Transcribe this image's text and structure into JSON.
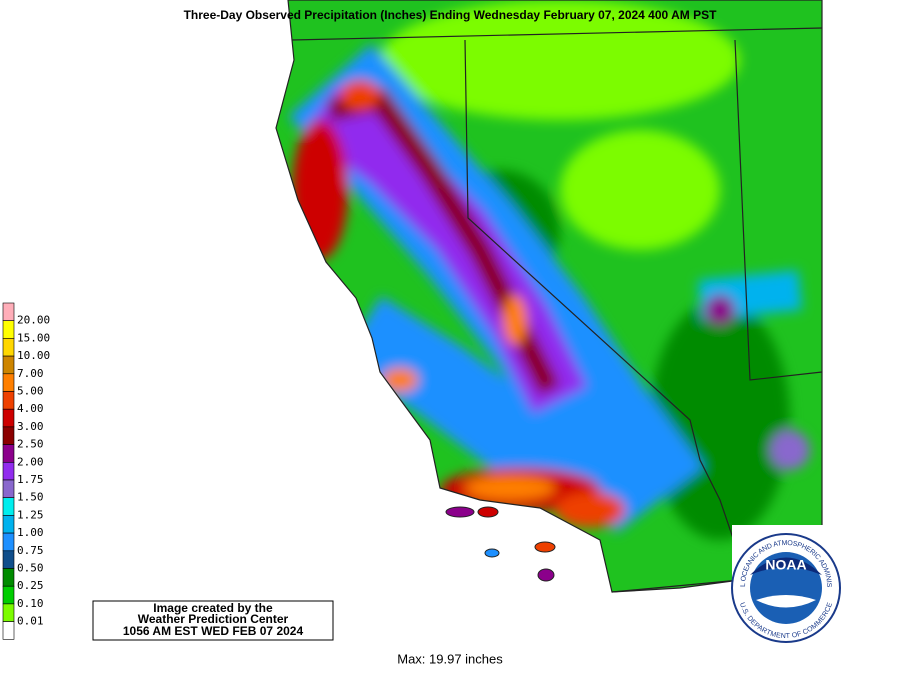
{
  "title": "Three-Day Observed Precipitation (Inches) Ending Wednesday February 07, 2024 400 AM PST",
  "legend": {
    "colors": [
      "#ffaeb9",
      "#ffff00",
      "#ffd700",
      "#cd8500",
      "#ff7f00",
      "#ee4000",
      "#cd0000",
      "#8b0000",
      "#8b008b",
      "#912cee",
      "#8968cd",
      "#00eeee",
      "#00b2ee",
      "#1e90ff",
      "#104e8b",
      "#008b00",
      "#00cd00",
      "#7cfc00",
      "#ffffff"
    ],
    "labels": [
      "20.00",
      "15.00",
      "10.00",
      "7.00",
      "5.00",
      "4.00",
      "3.00",
      "2.50",
      "2.00",
      "1.75",
      "1.50",
      "1.25",
      "1.00",
      "0.75",
      "0.50",
      "0.25",
      "0.10",
      "0.01"
    ]
  },
  "credit": [
    "Image created by the",
    "Weather Prediction Center",
    "1056 AM EST WED FEB 07 2024"
  ],
  "max_note": "Max: 19.97 inches",
  "logo": {
    "name": "NOAA",
    "ring_top": "NATIONAL OCEANIC AND ATMOSPHERIC ADMINISTRATION",
    "ring_bottom": "U.S. DEPARTMENT OF COMMERCE"
  }
}
